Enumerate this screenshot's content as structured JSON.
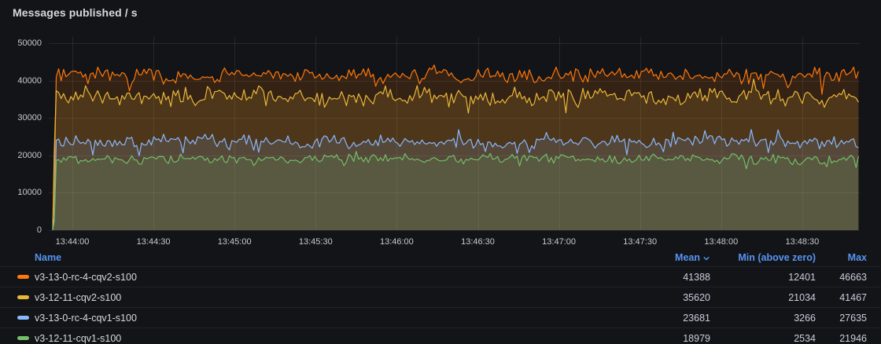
{
  "panel": {
    "title": "Messages published / s"
  },
  "colors": {
    "background": "#131418",
    "text_primary": "#D8D9DA",
    "text_secondary": "#C8C9CE",
    "link": "#5794F2",
    "grid": "rgba(204,204,220,0.10)"
  },
  "chart_data": {
    "type": "area",
    "title": "Messages published / s",
    "x_ticks": [
      "13:44:00",
      "13:44:30",
      "13:45:00",
      "13:45:30",
      "13:46:00",
      "13:46:30",
      "13:47:00",
      "13:47:30",
      "13:48:00",
      "13:48:30"
    ],
    "y_ticks": [
      0,
      10000,
      20000,
      30000,
      40000,
      50000
    ],
    "ylim": [
      0,
      50000
    ],
    "grid": true,
    "fill_opacity": 0.14,
    "legend_position": "bottom-table",
    "series": [
      {
        "name": "v3-13-0-rc-4-cqv2-s100",
        "color": "#FF780A",
        "mean": 41388,
        "min_above_zero": 12401,
        "max": 46663
      },
      {
        "name": "v3-12-11-cqv2-s100",
        "color": "#EAB839",
        "mean": 35620,
        "min_above_zero": 21034,
        "max": 41467
      },
      {
        "name": "v3-13-0-rc-4-cqv1-s100",
        "color": "#8AB8FF",
        "mean": 23681,
        "min_above_zero": 3266,
        "max": 27635
      },
      {
        "name": "v3-12-11-cqv1-s100",
        "color": "#73BF69",
        "mean": 18979,
        "min_above_zero": 2534,
        "max": 21946
      }
    ]
  },
  "legend": {
    "columns": {
      "name": "Name",
      "mean": "Mean",
      "min": "Min (above zero)",
      "max": "Max"
    },
    "sort": {
      "column": "Mean",
      "direction": "desc",
      "icon": "chevron-down"
    }
  }
}
